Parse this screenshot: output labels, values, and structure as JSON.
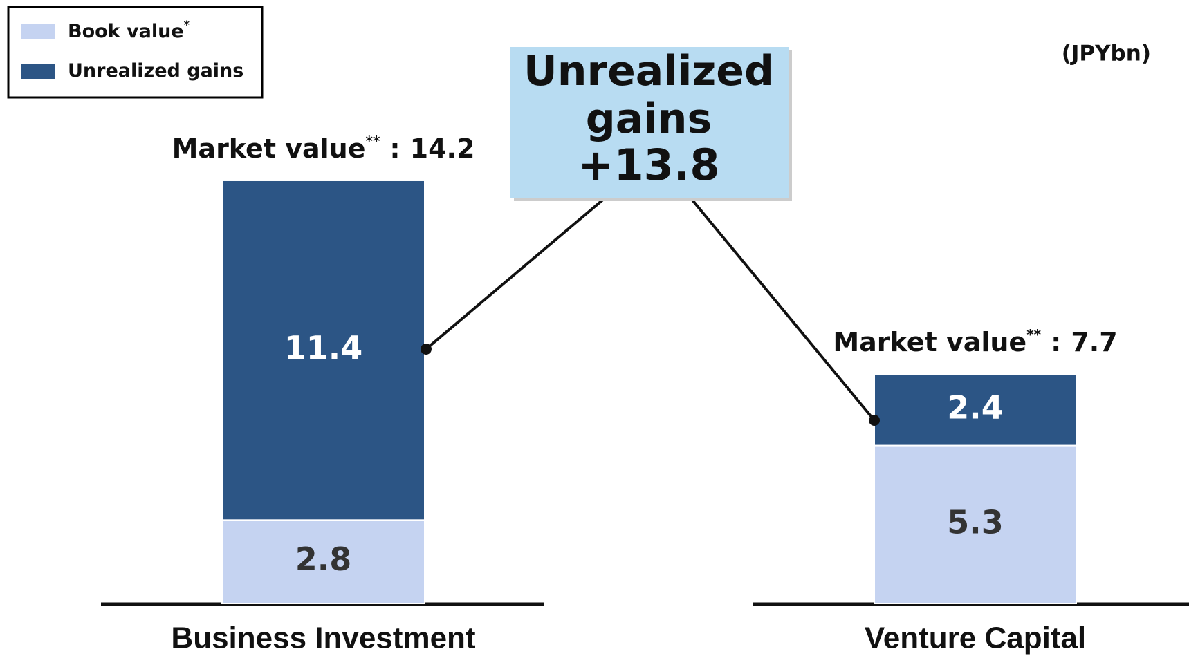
{
  "chart_data": {
    "type": "stacked_bar",
    "categories": [
      "Business Investment",
      "Venture Capital"
    ],
    "series": [
      {
        "name": "Book value",
        "superscript": "*",
        "color": "#c5d3f1",
        "values": [
          2.8,
          5.3
        ]
      },
      {
        "name": "Unrealized gains",
        "color": "#2c5585",
        "values": [
          11.4,
          2.4
        ]
      }
    ],
    "total_label": "Market value",
    "total_label_superscript": "**",
    "total_separator": ":",
    "totals": [
      14.2,
      7.7
    ],
    "unit": "(JPYbn)",
    "annotation": {
      "text": "Unrealized gains",
      "value": 13.8,
      "value_label": "+13.8"
    },
    "ylim": [
      0,
      20
    ],
    "legend": "upper left"
  }
}
